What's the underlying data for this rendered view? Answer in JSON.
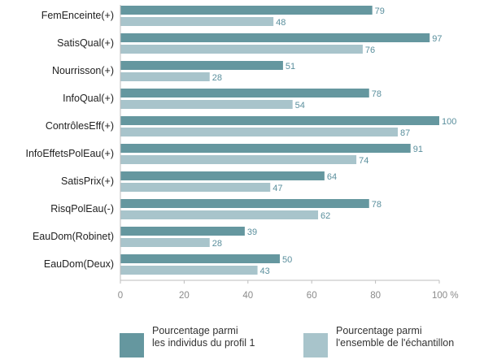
{
  "chart_data": {
    "type": "bar",
    "orientation": "horizontal",
    "categories": [
      "FemEnceinte(+)",
      "SatisQual(+)",
      "Nourrisson(+)",
      "InfoQual(+)",
      "ContrôlesEff(+)",
      "InfoEffetsPolEau(+)",
      "SatisPrix(+)",
      "RisqPolEau(-)",
      "EauDom(Robinet)",
      "EauDom(Deux)"
    ],
    "series": [
      {
        "name": "Pourcentage parmi les individus du profil 1",
        "name_lines": [
          "Pourcentage parmi",
          "les individus du profil 1"
        ],
        "color": "#65979f",
        "values": [
          79,
          97,
          51,
          78,
          100,
          91,
          64,
          78,
          39,
          50
        ]
      },
      {
        "name": "Pourcentage parmi l'ensemble de l'échantillon",
        "name_lines": [
          "Pourcentage parmi",
          "l'ensemble de l'échantillon"
        ],
        "color": "#a8c4cb",
        "values": [
          48,
          76,
          28,
          54,
          87,
          74,
          47,
          62,
          28,
          43
        ]
      }
    ],
    "xlim": [
      0,
      100
    ],
    "xticks": [
      "0",
      "20",
      "40",
      "60",
      "80",
      "100 %"
    ],
    "value_label_color": "#5a8f9d",
    "grid": false,
    "legend_position": "bottom"
  }
}
